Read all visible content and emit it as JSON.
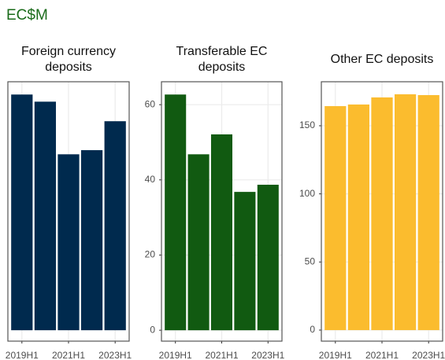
{
  "title": "EC$M",
  "chart_data": [
    {
      "type": "bar",
      "title": [
        "Foreign currency",
        "deposits"
      ],
      "categories": [
        "2019H1",
        null,
        "2021H1",
        null,
        "2023H1"
      ],
      "values": [
        62.7,
        60.8,
        46.8,
        47.9,
        55.6
      ],
      "color": "#002a4e",
      "ylim": [
        -2.9,
        66.1
      ],
      "yticks": [],
      "grid": true
    },
    {
      "type": "bar",
      "title": [
        "Transferable EC",
        "deposits"
      ],
      "categories": [
        "2019H1",
        null,
        "2021H1",
        null,
        "2023H1"
      ],
      "values": [
        62.7,
        46.8,
        52.1,
        36.8,
        38.7
      ],
      "color": "#115a11",
      "ylim": [
        -2.9,
        66.1
      ],
      "yticks": [
        0,
        20,
        40,
        60
      ],
      "grid": true
    },
    {
      "type": "bar",
      "title": [
        "Other EC deposits"
      ],
      "categories": [
        "2019H1",
        null,
        "2021H1",
        null,
        "2023H1"
      ],
      "values": [
        164.4,
        165.6,
        170.8,
        173.1,
        172.5
      ],
      "color": "#fbbc2e",
      "ylim": [
        -8.1,
        182.3
      ],
      "yticks": [
        0,
        50,
        100,
        150
      ],
      "grid": true
    }
  ]
}
